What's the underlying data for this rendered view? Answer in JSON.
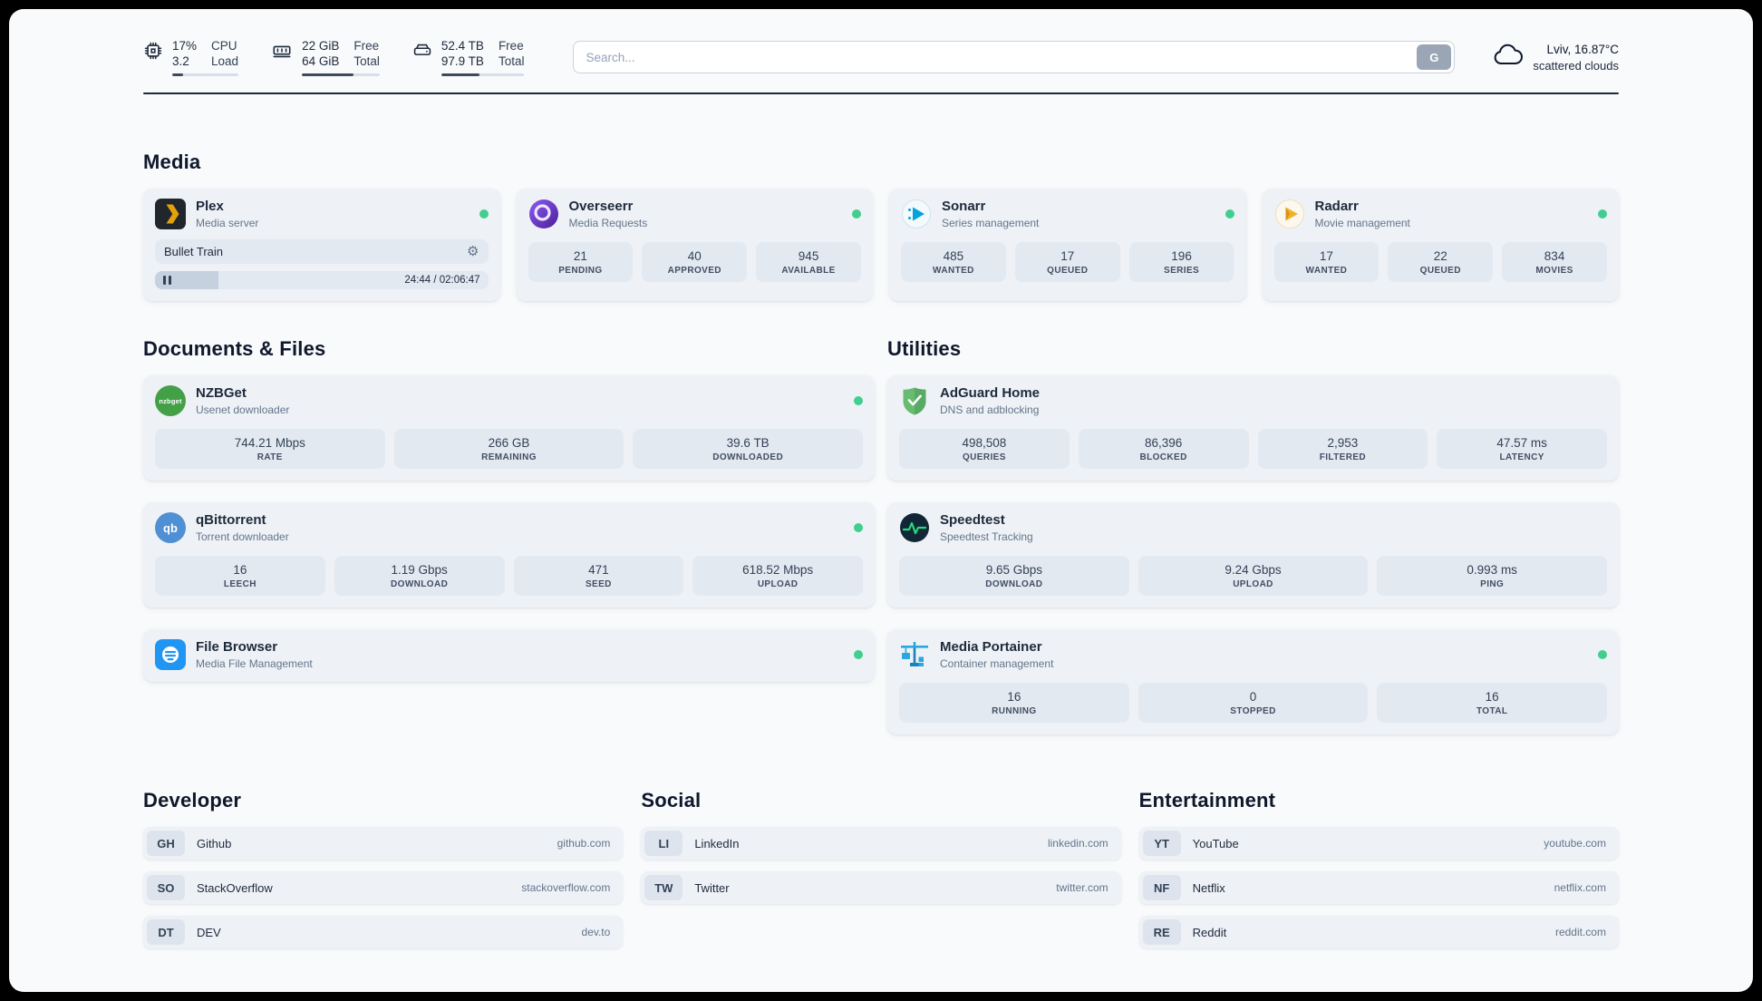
{
  "colors": {
    "status_online": "#41ce8e",
    "accent_dark": "#1f2937"
  },
  "header": {
    "cpu": {
      "value_top": "17%",
      "value_bottom": "3.2",
      "label_top": "CPU",
      "label_bottom": "Load",
      "progress": 17
    },
    "memory": {
      "value_top": "22 GiB",
      "value_bottom": "64 GiB",
      "label_top": "Free",
      "label_bottom": "Total",
      "progress": 66
    },
    "disk": {
      "value_top": "52.4 TB",
      "value_bottom": "97.9 TB",
      "label_top": "Free",
      "label_bottom": "Total",
      "progress": 46
    },
    "search": {
      "placeholder": "Search...",
      "button_label": "G"
    },
    "weather": {
      "location": "Lviv, 16.87°C",
      "condition": "scattered clouds"
    }
  },
  "icons": {
    "gear": "⚙",
    "nzbget_text": "nzbget",
    "qbittorrent_text": "qb"
  },
  "media": {
    "heading": "Media",
    "plex": {
      "name": "Plex",
      "subtitle": "Media server",
      "now_playing": "Bullet Train",
      "time": "24:44 / 02:06:47",
      "progress": 19
    },
    "overseerr": {
      "name": "Overseerr",
      "subtitle": "Media Requests",
      "stats": [
        {
          "value": "21",
          "label": "PENDING"
        },
        {
          "value": "40",
          "label": "APPROVED"
        },
        {
          "value": "945",
          "label": "AVAILABLE"
        }
      ]
    },
    "sonarr": {
      "name": "Sonarr",
      "subtitle": "Series management",
      "stats": [
        {
          "value": "485",
          "label": "WANTED"
        },
        {
          "value": "17",
          "label": "QUEUED"
        },
        {
          "value": "196",
          "label": "SERIES"
        }
      ]
    },
    "radarr": {
      "name": "Radarr",
      "subtitle": "Movie management",
      "stats": [
        {
          "value": "17",
          "label": "WANTED"
        },
        {
          "value": "22",
          "label": "QUEUED"
        },
        {
          "value": "834",
          "label": "MOVIES"
        }
      ]
    }
  },
  "documents": {
    "heading": "Documents & Files",
    "nzbget": {
      "name": "NZBGet",
      "subtitle": "Usenet downloader",
      "stats": [
        {
          "value": "744.21 Mbps",
          "label": "RATE"
        },
        {
          "value": "266 GB",
          "label": "REMAINING"
        },
        {
          "value": "39.6 TB",
          "label": "DOWNLOADED"
        }
      ]
    },
    "qbittorrent": {
      "name": "qBittorrent",
      "subtitle": "Torrent downloader",
      "stats": [
        {
          "value": "16",
          "label": "LEECH"
        },
        {
          "value": "1.19 Gbps",
          "label": "DOWNLOAD"
        },
        {
          "value": "471",
          "label": "SEED"
        },
        {
          "value": "618.52 Mbps",
          "label": "UPLOAD"
        }
      ]
    },
    "filebrowser": {
      "name": "File Browser",
      "subtitle": "Media File Management"
    }
  },
  "utilities": {
    "heading": "Utilities",
    "adguard": {
      "name": "AdGuard Home",
      "subtitle": "DNS and adblocking",
      "stats": [
        {
          "value": "498,508",
          "label": "QUERIES"
        },
        {
          "value": "86,396",
          "label": "BLOCKED"
        },
        {
          "value": "2,953",
          "label": "FILTERED"
        },
        {
          "value": "47.57 ms",
          "label": "LATENCY"
        }
      ]
    },
    "speedtest": {
      "name": "Speedtest",
      "subtitle": "Speedtest Tracking",
      "stats": [
        {
          "value": "9.65 Gbps",
          "label": "DOWNLOAD"
        },
        {
          "value": "9.24 Gbps",
          "label": "UPLOAD"
        },
        {
          "value": "0.993 ms",
          "label": "PING"
        }
      ]
    },
    "portainer": {
      "name": "Media Portainer",
      "subtitle": "Container management",
      "stats": [
        {
          "value": "16",
          "label": "RUNNING"
        },
        {
          "value": "0",
          "label": "STOPPED"
        },
        {
          "value": "16",
          "label": "TOTAL"
        }
      ]
    }
  },
  "bookmarks": {
    "developer": {
      "heading": "Developer",
      "items": [
        {
          "abbr": "GH",
          "name": "Github",
          "url": "github.com"
        },
        {
          "abbr": "SO",
          "name": "StackOverflow",
          "url": "stackoverflow.com"
        },
        {
          "abbr": "DT",
          "name": "DEV",
          "url": "dev.to"
        }
      ]
    },
    "social": {
      "heading": "Social",
      "items": [
        {
          "abbr": "LI",
          "name": "LinkedIn",
          "url": "linkedin.com"
        },
        {
          "abbr": "TW",
          "name": "Twitter",
          "url": "twitter.com"
        }
      ]
    },
    "entertainment": {
      "heading": "Entertainment",
      "items": [
        {
          "abbr": "YT",
          "name": "YouTube",
          "url": "youtube.com"
        },
        {
          "abbr": "NF",
          "name": "Netflix",
          "url": "netflix.com"
        },
        {
          "abbr": "RE",
          "name": "Reddit",
          "url": "reddit.com"
        }
      ]
    }
  }
}
